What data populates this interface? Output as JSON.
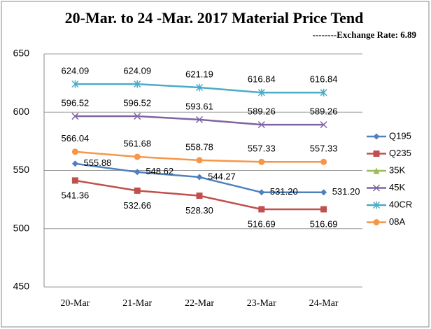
{
  "chart_data": {
    "type": "line",
    "title": "20-Mar. to 24 -Mar. 2017 Material Price Tend",
    "subtitle": "--------Exchange Rate: 6.89",
    "categories": [
      "20-Mar",
      "21-Mar",
      "22-Mar",
      "23-Mar",
      "24-Mar"
    ],
    "ylim": [
      450,
      650
    ],
    "yticks": [
      450,
      500,
      550,
      600,
      650
    ],
    "grid": true,
    "legend": "right",
    "series": [
      {
        "name": "Q195",
        "color": "#4f81bd",
        "values": [
          555.88,
          548.62,
          544.27,
          531.2,
          531.2
        ],
        "value_labels": [
          "555.88",
          "548.62",
          "544.27",
          "531.20",
          "531.20"
        ]
      },
      {
        "name": "Q235",
        "color": "#c0504d",
        "values": [
          541.36,
          532.66,
          528.3,
          516.69,
          516.69
        ],
        "value_labels": [
          "541.36",
          "532.66",
          "528.30",
          "516.69",
          "516.69"
        ]
      },
      {
        "name": "35K",
        "color": "#9bbb59",
        "values": [
          null,
          null,
          null,
          null,
          null
        ]
      },
      {
        "name": "45K",
        "color": "#8064a2",
        "values": [
          596.52,
          596.52,
          593.61,
          589.26,
          589.26
        ],
        "value_labels": [
          "596.52",
          "596.52",
          "593.61",
          "589.26",
          "589.26"
        ]
      },
      {
        "name": "40CR",
        "color": "#4bacc6",
        "values": [
          624.09,
          624.09,
          621.19,
          616.84,
          616.84
        ],
        "value_labels": [
          "624.09",
          "624.09",
          "621.19",
          "616.84",
          "616.84"
        ]
      },
      {
        "name": "08A",
        "color": "#f79646",
        "values": [
          566.04,
          561.68,
          558.78,
          557.33,
          557.33
        ],
        "value_labels": [
          "566.04",
          "561.68",
          "558.78",
          "557.33",
          "557.33"
        ]
      }
    ]
  }
}
